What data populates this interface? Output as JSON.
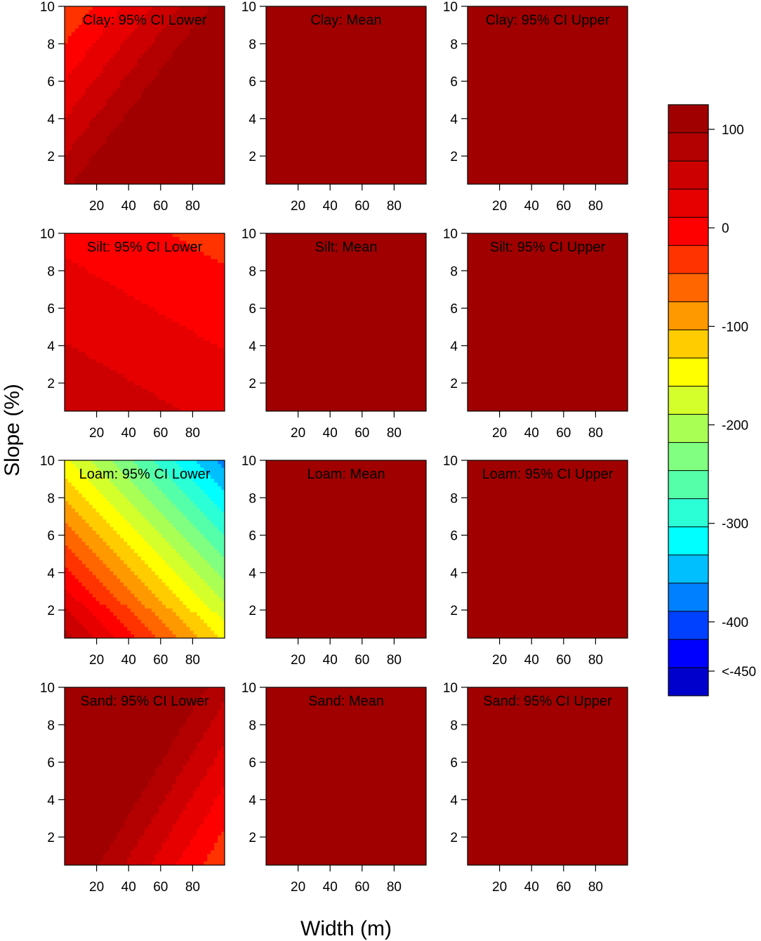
{
  "chart_data": {
    "type": "heatmap",
    "layout": {
      "rows": 4,
      "cols": 3
    },
    "xlabel": "Width (m)",
    "ylabel": "Slope (%)",
    "xlim": [
      0,
      100
    ],
    "ylim": [
      0.5,
      10
    ],
    "xticks": [
      20,
      40,
      60,
      80
    ],
    "yticks": [
      2,
      4,
      6,
      8,
      10
    ],
    "colorbar": {
      "min": -475,
      "max": 125,
      "step": 25,
      "tick_values": [
        100,
        0,
        -100,
        -200,
        -300,
        -400,
        -450
      ],
      "tick_labels": [
        "100",
        "0",
        "-100",
        "-200",
        "-300",
        "-400",
        "<-450"
      ]
    },
    "palette_hex": [
      "#0000CC",
      "#0000FF",
      "#0040FF",
      "#0080FF",
      "#00BFFF",
      "#00FFFF",
      "#2BFFD5",
      "#55FFAA",
      "#80FF80",
      "#AAFF55",
      "#D5FF2B",
      "#FFFF00",
      "#FFCC00",
      "#FF9900",
      "#FF6600",
      "#FF3300",
      "#FF0000",
      "#E60000",
      "#CC0000",
      "#B30000",
      "#A00000"
    ],
    "panels": [
      {
        "title": "Clay: 95% CI Lower",
        "surface": {
          "a": 25,
          "bx": 1.375,
          "by": -12.5
        }
      },
      {
        "title": "Clay: Mean",
        "surface": {
          "a": 80,
          "bx": 0.4,
          "by": 0.2
        }
      },
      {
        "title": "Clay: 95% CI Upper",
        "surface": {
          "a": 100,
          "bx": 0.3,
          "by": 0.5
        }
      },
      {
        "title": "Silt: 95% CI Lower",
        "surface": {
          "a": -2,
          "bx": -0.275,
          "by": -5.5
        }
      },
      {
        "title": "Silt: Mean",
        "surface": {
          "a": 60,
          "bx": 0.18,
          "by": 2.5
        }
      },
      {
        "title": "Silt: 95% CI Upper",
        "surface": {
          "a": 85,
          "bx": 0.22,
          "by": 3
        }
      },
      {
        "title": "Loam: 95% CI Lower",
        "surface": {
          "a": 20,
          "bx": -1.92,
          "by": -21.5
        }
      },
      {
        "title": "Loam: Mean",
        "surface": {
          "a": 65,
          "bx": 0.25,
          "by": -1
        }
      },
      {
        "title": "Loam: 95% CI Upper",
        "surface": {
          "a": 90,
          "bx": 0.3,
          "by": 0.2
        }
      },
      {
        "title": "Sand: 95% CI Lower",
        "surface": {
          "a": 52,
          "bx": -1.54,
          "by": 11
        }
      },
      {
        "title": "Sand: Mean",
        "surface": {
          "a": 75,
          "bx": 0.02,
          "by": 12
        }
      },
      {
        "title": "Sand: 95% CI Upper",
        "surface": {
          "a": 100,
          "bx": 0.3,
          "by": 1
        }
      }
    ]
  }
}
